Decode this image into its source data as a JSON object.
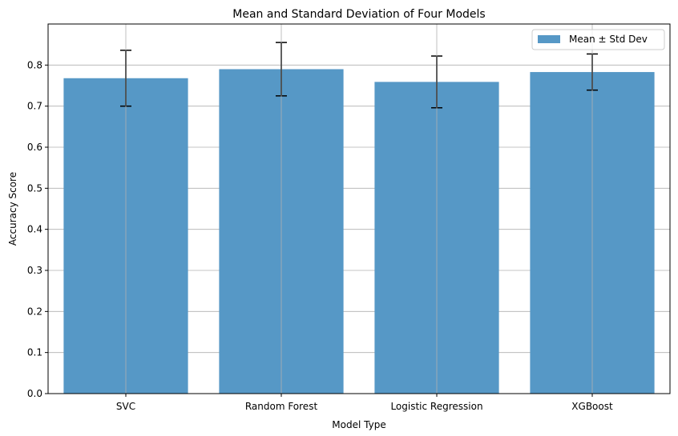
{
  "chart_data": {
    "type": "bar",
    "title": "Mean and Standard Deviation of Four Models",
    "xlabel": "Model Type",
    "ylabel": "Accuracy Score",
    "categories": [
      "SVC",
      "Random Forest",
      "Logistic Regression",
      "XGBoost"
    ],
    "series": [
      {
        "name": "Mean ± Std Dev",
        "values": [
          0.768,
          0.79,
          0.759,
          0.783
        ],
        "std": [
          0.068,
          0.065,
          0.063,
          0.044
        ]
      }
    ],
    "ylim": [
      0,
      0.9
    ],
    "yticks": [
      "0.0",
      "0.1",
      "0.2",
      "0.3",
      "0.4",
      "0.5",
      "0.6",
      "0.7",
      "0.8"
    ],
    "grid": true,
    "legend_position": "top-right",
    "colors": {
      "bar": "#5698c6",
      "error_bar": "#000000",
      "grid": "#b0b0b0",
      "axis": "#000000"
    }
  }
}
